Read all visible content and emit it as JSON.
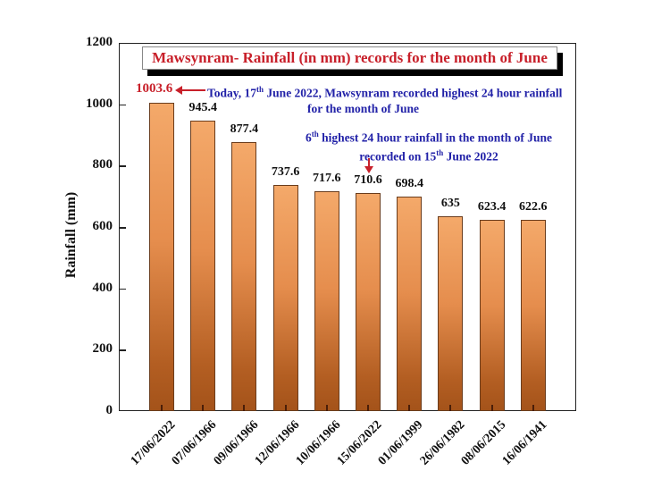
{
  "chart_data": {
    "type": "bar",
    "title": "Mawsynram- Rainfall (in mm) records for the month of June",
    "xlabel": "",
    "ylabel": "Rainfall (mm)",
    "ylim": [
      0,
      1200
    ],
    "yticks": [
      0,
      200,
      400,
      600,
      800,
      1000,
      1200
    ],
    "grid": false,
    "categories": [
      "17/06/2022",
      "07/06/1966",
      "09/06/1966",
      "12/06/1966",
      "10/06/1966",
      "15/06/2022",
      "01/06/1999",
      "26/06/1982",
      "08/06/2015",
      "16/06/1941"
    ],
    "values": [
      1003.6,
      945.4,
      877.4,
      737.6,
      717.6,
      710.6,
      698.4,
      635,
      623.4,
      622.6
    ],
    "value_labels": [
      "1003.6",
      "945.4",
      "877.4",
      "737.6",
      "717.6",
      "710.6",
      "698.4",
      "635",
      "623.4",
      "622.6"
    ],
    "annotations": [
      {
        "text": "Today, 17th June 2022, Mawsynram recorded highest 24 hour rainfall for the month of June",
        "target": "17/06/2022",
        "color": "#2222a8"
      },
      {
        "text": "6th highest 24 hour rainfall in the month of June recorded on 15th June 2022",
        "target": "15/06/2022",
        "color": "#2222a8"
      }
    ],
    "colors": {
      "bar_top": "#f4a96a",
      "bar_bottom": "#a4531a",
      "title": "#c8202a",
      "annotation": "#2222a8",
      "highlight": "#c8202a"
    }
  },
  "labels": {
    "title": "Mawsynram- Rainfall (in mm) records for the month of June",
    "y_axis": "Rainfall (mm)",
    "highlight_value": "1003.6",
    "annot1_line1_pre": "Today, 17",
    "annot1_sup": "th",
    "annot1_line1_post": " June 2022, Mawsynram recorded highest 24 hour rainfall",
    "annot1_line2": "for the month of June",
    "annot2_pre": "6",
    "annot2_sup": "th",
    "annot2_line1_post": " highest 24 hour rainfall in the month of June",
    "annot2_line2_pre": "recorded on 15",
    "annot2_line2_sup": "th",
    "annot2_line2_post": " June 2022"
  }
}
